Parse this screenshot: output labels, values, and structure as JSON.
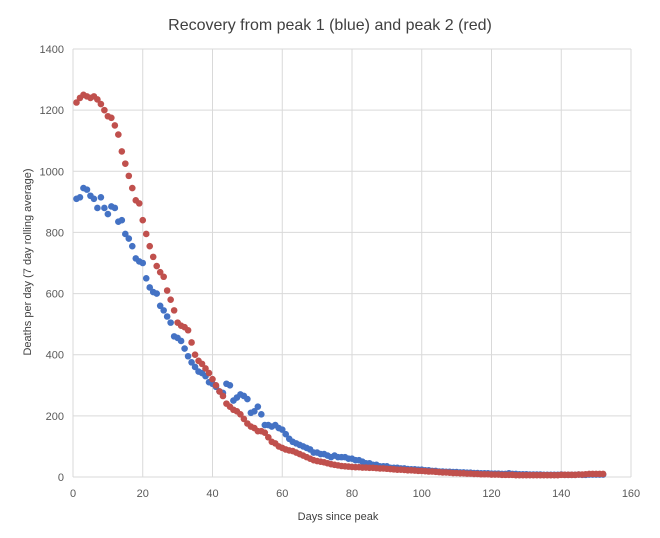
{
  "chart_data": {
    "type": "scatter",
    "title": "Recovery from peak 1 (blue) and peak 2 (red)",
    "xlabel": "Days since peak",
    "ylabel": "Deaths per day (7 day rolling average)",
    "xlim": [
      0,
      160
    ],
    "ylim": [
      0,
      1400
    ],
    "xticks": [
      0,
      20,
      40,
      60,
      80,
      100,
      120,
      140,
      160
    ],
    "yticks": [
      0,
      200,
      400,
      600,
      800,
      1000,
      1200,
      1400
    ],
    "grid": true,
    "legend": "none",
    "series": [
      {
        "name": "peak 1",
        "color": "#4472c4",
        "points": [
          [
            1,
            910
          ],
          [
            2,
            915
          ],
          [
            3,
            945
          ],
          [
            4,
            940
          ],
          [
            5,
            920
          ],
          [
            6,
            910
          ],
          [
            7,
            880
          ],
          [
            8,
            915
          ],
          [
            9,
            880
          ],
          [
            10,
            860
          ],
          [
            11,
            885
          ],
          [
            12,
            880
          ],
          [
            13,
            835
          ],
          [
            14,
            840
          ],
          [
            15,
            795
          ],
          [
            16,
            780
          ],
          [
            17,
            755
          ],
          [
            18,
            715
          ],
          [
            19,
            705
          ],
          [
            20,
            700
          ],
          [
            21,
            650
          ],
          [
            22,
            620
          ],
          [
            23,
            605
          ],
          [
            24,
            600
          ],
          [
            25,
            560
          ],
          [
            26,
            545
          ],
          [
            27,
            525
          ],
          [
            28,
            505
          ],
          [
            29,
            460
          ],
          [
            30,
            455
          ],
          [
            31,
            445
          ],
          [
            32,
            420
          ],
          [
            33,
            395
          ],
          [
            34,
            375
          ],
          [
            35,
            360
          ],
          [
            36,
            345
          ],
          [
            37,
            340
          ],
          [
            38,
            330
          ],
          [
            39,
            310
          ],
          [
            40,
            305
          ],
          [
            41,
            295
          ],
          [
            42,
            280
          ],
          [
            43,
            275
          ],
          [
            44,
            305
          ],
          [
            45,
            300
          ],
          [
            46,
            250
          ],
          [
            47,
            260
          ],
          [
            48,
            270
          ],
          [
            49,
            265
          ],
          [
            50,
            255
          ],
          [
            51,
            210
          ],
          [
            52,
            215
          ],
          [
            53,
            230
          ],
          [
            54,
            205
          ],
          [
            55,
            170
          ],
          [
            56,
            170
          ],
          [
            57,
            165
          ],
          [
            58,
            170
          ],
          [
            59,
            160
          ],
          [
            60,
            155
          ],
          [
            61,
            140
          ],
          [
            62,
            125
          ],
          [
            63,
            115
          ],
          [
            64,
            110
          ],
          [
            65,
            105
          ],
          [
            66,
            100
          ],
          [
            67,
            95
          ],
          [
            68,
            90
          ],
          [
            69,
            80
          ],
          [
            70,
            80
          ],
          [
            71,
            75
          ],
          [
            72,
            75
          ],
          [
            73,
            70
          ],
          [
            74,
            65
          ],
          [
            75,
            70
          ],
          [
            76,
            65
          ],
          [
            77,
            65
          ],
          [
            78,
            65
          ],
          [
            79,
            60
          ],
          [
            80,
            60
          ],
          [
            81,
            55
          ],
          [
            82,
            55
          ],
          [
            83,
            50
          ],
          [
            84,
            45
          ],
          [
            85,
            45
          ],
          [
            86,
            40
          ],
          [
            87,
            40
          ],
          [
            88,
            35
          ],
          [
            89,
            35
          ],
          [
            90,
            35
          ],
          [
            91,
            30
          ],
          [
            92,
            30
          ],
          [
            93,
            30
          ],
          [
            94,
            28
          ],
          [
            95,
            28
          ],
          [
            96,
            26
          ],
          [
            97,
            25
          ],
          [
            98,
            25
          ],
          [
            99,
            24
          ],
          [
            100,
            24
          ],
          [
            101,
            22
          ],
          [
            102,
            22
          ],
          [
            103,
            20
          ],
          [
            104,
            20
          ],
          [
            105,
            18
          ],
          [
            106,
            18
          ],
          [
            107,
            17
          ],
          [
            108,
            17
          ],
          [
            109,
            16
          ],
          [
            110,
            16
          ],
          [
            111,
            15
          ],
          [
            112,
            15
          ],
          [
            113,
            14
          ],
          [
            114,
            14
          ],
          [
            115,
            13
          ],
          [
            116,
            13
          ],
          [
            117,
            12
          ],
          [
            118,
            12
          ],
          [
            119,
            12
          ],
          [
            120,
            11
          ],
          [
            121,
            11
          ],
          [
            122,
            11
          ],
          [
            123,
            10
          ],
          [
            124,
            10
          ],
          [
            125,
            12
          ],
          [
            126,
            10
          ],
          [
            127,
            10
          ],
          [
            128,
            9
          ],
          [
            129,
            9
          ],
          [
            130,
            9
          ],
          [
            131,
            8
          ],
          [
            132,
            8
          ],
          [
            133,
            8
          ],
          [
            134,
            8
          ],
          [
            135,
            7
          ],
          [
            136,
            7
          ],
          [
            137,
            7
          ],
          [
            138,
            7
          ],
          [
            139,
            7
          ],
          [
            140,
            8
          ],
          [
            141,
            7
          ],
          [
            142,
            7
          ],
          [
            143,
            7
          ],
          [
            144,
            7
          ],
          [
            145,
            8
          ],
          [
            146,
            7
          ],
          [
            147,
            7
          ],
          [
            148,
            8
          ],
          [
            149,
            8
          ],
          [
            150,
            8
          ],
          [
            151,
            8
          ],
          [
            152,
            8
          ]
        ]
      },
      {
        "name": "peak 2",
        "color": "#c0504d",
        "points": [
          [
            1,
            1225
          ],
          [
            2,
            1240
          ],
          [
            3,
            1250
          ],
          [
            4,
            1245
          ],
          [
            5,
            1240
          ],
          [
            6,
            1245
          ],
          [
            7,
            1235
          ],
          [
            8,
            1220
          ],
          [
            9,
            1200
          ],
          [
            10,
            1180
          ],
          [
            11,
            1175
          ],
          [
            12,
            1150
          ],
          [
            13,
            1120
          ],
          [
            14,
            1065
          ],
          [
            15,
            1025
          ],
          [
            16,
            985
          ],
          [
            17,
            945
          ],
          [
            18,
            905
          ],
          [
            19,
            895
          ],
          [
            20,
            840
          ],
          [
            21,
            795
          ],
          [
            22,
            755
          ],
          [
            23,
            720
          ],
          [
            24,
            690
          ],
          [
            25,
            670
          ],
          [
            26,
            655
          ],
          [
            27,
            610
          ],
          [
            28,
            580
          ],
          [
            29,
            545
          ],
          [
            30,
            505
          ],
          [
            31,
            495
          ],
          [
            32,
            490
          ],
          [
            33,
            480
          ],
          [
            34,
            440
          ],
          [
            35,
            400
          ],
          [
            36,
            380
          ],
          [
            37,
            370
          ],
          [
            38,
            355
          ],
          [
            39,
            340
          ],
          [
            40,
            320
          ],
          [
            41,
            300
          ],
          [
            42,
            280
          ],
          [
            43,
            265
          ],
          [
            44,
            240
          ],
          [
            45,
            230
          ],
          [
            46,
            220
          ],
          [
            47,
            215
          ],
          [
            48,
            205
          ],
          [
            49,
            190
          ],
          [
            50,
            175
          ],
          [
            51,
            165
          ],
          [
            52,
            160
          ],
          [
            53,
            150
          ],
          [
            54,
            150
          ],
          [
            55,
            145
          ],
          [
            56,
            130
          ],
          [
            57,
            115
          ],
          [
            58,
            110
          ],
          [
            59,
            100
          ],
          [
            60,
            95
          ],
          [
            61,
            90
          ],
          [
            62,
            87
          ],
          [
            63,
            85
          ],
          [
            64,
            80
          ],
          [
            65,
            75
          ],
          [
            66,
            70
          ],
          [
            67,
            65
          ],
          [
            68,
            60
          ],
          [
            69,
            55
          ],
          [
            70,
            52
          ],
          [
            71,
            50
          ],
          [
            72,
            48
          ],
          [
            73,
            45
          ],
          [
            74,
            42
          ],
          [
            75,
            40
          ],
          [
            76,
            38
          ],
          [
            77,
            36
          ],
          [
            78,
            35
          ],
          [
            79,
            34
          ],
          [
            80,
            33
          ],
          [
            81,
            32
          ],
          [
            82,
            32
          ],
          [
            83,
            31
          ],
          [
            84,
            31
          ],
          [
            85,
            30
          ],
          [
            86,
            30
          ],
          [
            87,
            29
          ],
          [
            88,
            28
          ],
          [
            89,
            28
          ],
          [
            90,
            27
          ],
          [
            91,
            26
          ],
          [
            92,
            25
          ],
          [
            93,
            24
          ],
          [
            94,
            24
          ],
          [
            95,
            23
          ],
          [
            96,
            22
          ],
          [
            97,
            22
          ],
          [
            98,
            21
          ],
          [
            99,
            20
          ],
          [
            100,
            20
          ],
          [
            101,
            19
          ],
          [
            102,
            18
          ],
          [
            103,
            18
          ],
          [
            104,
            17
          ],
          [
            105,
            16
          ],
          [
            106,
            15
          ],
          [
            107,
            15
          ],
          [
            108,
            14
          ],
          [
            109,
            13
          ],
          [
            110,
            13
          ],
          [
            111,
            12
          ],
          [
            112,
            12
          ],
          [
            113,
            11
          ],
          [
            114,
            11
          ],
          [
            115,
            10
          ],
          [
            116,
            10
          ],
          [
            117,
            9
          ],
          [
            118,
            9
          ],
          [
            119,
            9
          ],
          [
            120,
            8
          ],
          [
            121,
            8
          ],
          [
            122,
            8
          ],
          [
            123,
            7
          ],
          [
            124,
            7
          ],
          [
            125,
            7
          ],
          [
            126,
            7
          ],
          [
            127,
            6
          ],
          [
            128,
            6
          ],
          [
            129,
            6
          ],
          [
            130,
            6
          ],
          [
            131,
            6
          ],
          [
            132,
            6
          ],
          [
            133,
            6
          ],
          [
            134,
            6
          ],
          [
            135,
            6
          ],
          [
            136,
            6
          ],
          [
            137,
            6
          ],
          [
            138,
            6
          ],
          [
            139,
            6
          ],
          [
            140,
            7
          ],
          [
            141,
            7
          ],
          [
            142,
            7
          ],
          [
            143,
            7
          ],
          [
            144,
            7
          ],
          [
            145,
            8
          ],
          [
            146,
            8
          ],
          [
            147,
            9
          ],
          [
            148,
            10
          ],
          [
            149,
            10
          ],
          [
            150,
            10
          ],
          [
            151,
            10
          ],
          [
            152,
            10
          ]
        ]
      }
    ]
  }
}
